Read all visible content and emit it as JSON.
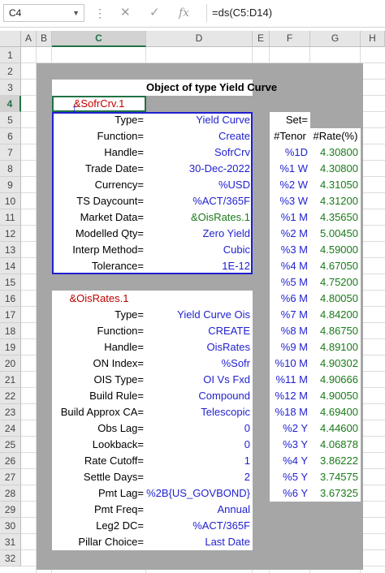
{
  "formula_bar": {
    "name_box": "C4",
    "cancel_icon": "✕",
    "enter_icon": "✓",
    "function_icon": "fx",
    "formula": "=ds(C5:D14)"
  },
  "columns": [
    "A",
    "B",
    "C",
    "D",
    "E",
    "F",
    "G",
    "H"
  ],
  "rows": [
    "1",
    "2",
    "3",
    "4",
    "5",
    "6",
    "7",
    "8",
    "9",
    "10",
    "11",
    "12",
    "13",
    "14",
    "15",
    "16",
    "17",
    "18",
    "19",
    "20",
    "21",
    "22",
    "23",
    "24",
    "25",
    "26",
    "27",
    "28",
    "29",
    "30",
    "31",
    "32"
  ],
  "selected_column": "C",
  "selected_row": "4",
  "yield_curve": {
    "title": "Object of type Yield Curve",
    "handle_ref": "&SofrCrv.1",
    "fields": [
      {
        "label": "Type=",
        "value": "Yield Curve"
      },
      {
        "label": "Function=",
        "value": "Create"
      },
      {
        "label": "Handle=",
        "value": "SofrCrv"
      },
      {
        "label": "Trade Date=",
        "value": "30-Dec-2022"
      },
      {
        "label": "Currency=",
        "value": "%USD"
      },
      {
        "label": "TS Daycount=",
        "value": "%ACT/365F"
      },
      {
        "label": "Market Data=",
        "value": "&OisRates.1"
      },
      {
        "label": "Modelled Qty=",
        "value": "Zero Yield"
      },
      {
        "label": "Interp Method=",
        "value": "Cubic"
      },
      {
        "label": "Tolerance=",
        "value": "1E-12"
      }
    ]
  },
  "ois_rates": {
    "handle_ref": "&OisRates.1",
    "fields": [
      {
        "label": "Type=",
        "value": "Yield Curve Ois"
      },
      {
        "label": "Function=",
        "value": "CREATE"
      },
      {
        "label": "Handle=",
        "value": "OisRates"
      },
      {
        "label": "ON Index=",
        "value": "%Sofr"
      },
      {
        "label": "OIS Type=",
        "value": "OI Vs Fxd"
      },
      {
        "label": "Build Rule=",
        "value": "Compound"
      },
      {
        "label": "Build Approx CA=",
        "value": "Telescopic"
      },
      {
        "label": "Obs Lag=",
        "value": "0"
      },
      {
        "label": "Lookback=",
        "value": "0"
      },
      {
        "label": "Rate Cutoff=",
        "value": "1"
      },
      {
        "label": "Settle Days=",
        "value": "2"
      },
      {
        "label": "Pmt Lag=",
        "value": "%2B{US_GOVBOND}"
      },
      {
        "label": "Pmt Freq=",
        "value": "Annual"
      },
      {
        "label": "Leg2 DC=",
        "value": "%ACT/365F"
      },
      {
        "label": "Pillar Choice=",
        "value": "Last Date"
      }
    ]
  },
  "rates_table": {
    "set_label": "Set=",
    "header_tenor": "#Tenor",
    "header_rate": "#Rate(%)",
    "rows": [
      {
        "tenor": "%1D",
        "rate": "4.30800"
      },
      {
        "tenor": "%1 W",
        "rate": "4.30800"
      },
      {
        "tenor": "%2 W",
        "rate": "4.31050"
      },
      {
        "tenor": "%3 W",
        "rate": "4.31200"
      },
      {
        "tenor": "%1 M",
        "rate": "4.35650"
      },
      {
        "tenor": "%2 M",
        "rate": "5.00450"
      },
      {
        "tenor": "%3 M",
        "rate": "4.59000"
      },
      {
        "tenor": "%4 M",
        "rate": "4.67050"
      },
      {
        "tenor": "%5 M",
        "rate": "4.75200"
      },
      {
        "tenor": "%6 M",
        "rate": "4.80050"
      },
      {
        "tenor": "%7 M",
        "rate": "4.84200"
      },
      {
        "tenor": "%8 M",
        "rate": "4.86750"
      },
      {
        "tenor": "%9 M",
        "rate": "4.89100"
      },
      {
        "tenor": "%10 M",
        "rate": "4.90302"
      },
      {
        "tenor": "%11 M",
        "rate": "4.90666"
      },
      {
        "tenor": "%12 M",
        "rate": "4.90050"
      },
      {
        "tenor": "%18 M",
        "rate": "4.69400"
      },
      {
        "tenor": "%2 Y",
        "rate": "4.44600"
      },
      {
        "tenor": "%3 Y",
        "rate": "4.06878"
      },
      {
        "tenor": "%4 Y",
        "rate": "3.86222"
      },
      {
        "tenor": "%5 Y",
        "rate": "3.74575"
      },
      {
        "tenor": "%6 Y",
        "rate": "3.67325"
      }
    ]
  }
}
